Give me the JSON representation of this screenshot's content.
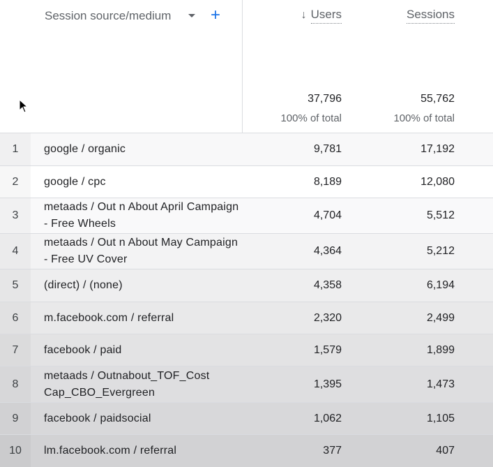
{
  "header": {
    "dimension_label": "Session source/medium",
    "add_symbol": "+",
    "sort_arrow": "↓",
    "col_users": "Users",
    "col_sessions": "Sessions",
    "total_users": "37,796",
    "total_sessions": "55,762",
    "pct_users": "100% of total",
    "pct_sessions": "100% of total"
  },
  "rows": [
    {
      "idx": "1",
      "dim": "google / organic",
      "users": "9,781",
      "sessions": "17,192"
    },
    {
      "idx": "2",
      "dim": "google / cpc",
      "users": "8,189",
      "sessions": "12,080"
    },
    {
      "idx": "3",
      "dim": "metaads / Out n About April Campaign - Free Wheels",
      "users": "4,704",
      "sessions": "5,512"
    },
    {
      "idx": "4",
      "dim": "metaads / Out n About May Campaign - Free UV Cover",
      "users": "4,364",
      "sessions": "5,212"
    },
    {
      "idx": "5",
      "dim": "(direct) / (none)",
      "users": "4,358",
      "sessions": "6,194"
    },
    {
      "idx": "6",
      "dim": "m.facebook.com / referral",
      "users": "2,320",
      "sessions": "2,499"
    },
    {
      "idx": "7",
      "dim": "facebook / paid",
      "users": "1,579",
      "sessions": "1,899"
    },
    {
      "idx": "8",
      "dim": "metaads / Outnabout_TOF_Cost Cap_CBO_Evergreen",
      "users": "1,395",
      "sessions": "1,473"
    },
    {
      "idx": "9",
      "dim": "facebook / paidsocial",
      "users": "1,062",
      "sessions": "1,105"
    },
    {
      "idx": "10",
      "dim": "lm.facebook.com / referral",
      "users": "377",
      "sessions": "407"
    }
  ]
}
